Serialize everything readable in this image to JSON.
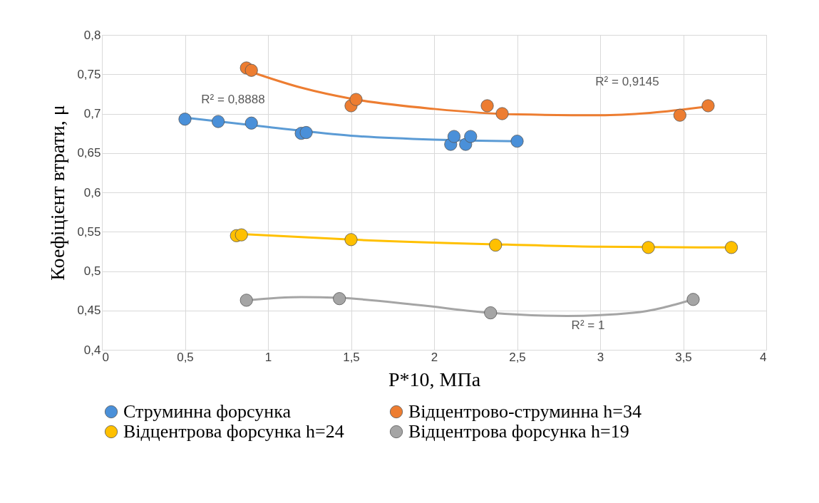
{
  "chart_data": {
    "type": "scatter",
    "xlabel": "P*10, МПа",
    "ylabel": "Коефіцієнт втрати, μ",
    "xlim": [
      0,
      4
    ],
    "xticks": [
      0,
      {
        "value": 0.5,
        "label": "0,5"
      },
      1,
      {
        "value": 1.5,
        "label": "1,5"
      },
      2,
      {
        "value": 2.5,
        "label": "2,5"
      },
      3,
      {
        "value": 3.5,
        "label": "3,5"
      },
      4
    ],
    "ylim": [
      0.4,
      0.8
    ],
    "yticks": [
      {
        "value": 0.4,
        "label": "0,4"
      },
      {
        "value": 0.45,
        "label": "0,45"
      },
      {
        "value": 0.5,
        "label": "0,5"
      },
      {
        "value": 0.55,
        "label": "0,55"
      },
      {
        "value": 0.6,
        "label": "0,6"
      },
      {
        "value": 0.65,
        "label": "0,65"
      },
      {
        "value": 0.7,
        "label": "0,7"
      },
      {
        "value": 0.75,
        "label": "0,75"
      },
      {
        "value": 0.8,
        "label": "0,8"
      }
    ],
    "grid": true,
    "legend": "bottom",
    "marker": "circle",
    "series": [
      {
        "name": "Струминна форсунка",
        "color": "#4a90d9",
        "x": [
          0.5,
          0.7,
          0.9,
          1.2,
          1.23,
          2.1,
          2.12,
          2.19,
          2.22,
          2.5
        ],
        "values": [
          0.693,
          0.69,
          0.688,
          0.675,
          0.676,
          0.661,
          0.671,
          0.661,
          0.671,
          0.665
        ]
      },
      {
        "name": "Відцентрово-струминна h=34",
        "color": "#ed7d31",
        "x": [
          0.87,
          0.9,
          1.5,
          1.53,
          2.32,
          2.41,
          3.48,
          3.65
        ],
        "values": [
          0.758,
          0.755,
          0.71,
          0.718,
          0.71,
          0.7,
          0.698,
          0.71
        ]
      },
      {
        "name": "Відцентрова форсунка h=24",
        "color": "#ffc000",
        "x": [
          0.81,
          0.84,
          1.5,
          2.37,
          3.29,
          3.79
        ],
        "values": [
          0.545,
          0.546,
          0.54,
          0.533,
          0.53,
          0.53
        ]
      },
      {
        "name": "Відцентрова форсунка h=19",
        "color": "#a5a5a5",
        "x": [
          0.87,
          1.43,
          2.34,
          3.56
        ],
        "values": [
          0.463,
          0.465,
          0.447,
          0.464
        ]
      },
      {
        "type": "line",
        "color": "#5b9bd5",
        "marker": "none",
        "x": [
          0.5,
          1.0,
          1.5,
          2.0,
          2.5
        ],
        "values": [
          0.695,
          0.683,
          0.672,
          0.667,
          0.665
        ]
      },
      {
        "type": "line",
        "color": "#ed7d31",
        "marker": "none",
        "x": [
          0.87,
          1.2,
          1.5,
          2.0,
          2.5,
          3.0,
          3.3,
          3.65
        ],
        "values": [
          0.755,
          0.733,
          0.719,
          0.706,
          0.699,
          0.698,
          0.701,
          0.709
        ]
      },
      {
        "type": "line",
        "color": "#ffc000",
        "marker": "none",
        "x": [
          0.84,
          1.5,
          2.37,
          3.0,
          3.79
        ],
        "values": [
          0.547,
          0.54,
          0.534,
          0.531,
          0.53
        ]
      },
      {
        "type": "line",
        "color": "#a5a5a5",
        "marker": "none",
        "x": [
          0.87,
          1.2,
          1.43,
          1.9,
          2.34,
          2.8,
          3.2,
          3.56
        ],
        "values": [
          0.463,
          0.467,
          0.466,
          0.457,
          0.447,
          0.443,
          0.447,
          0.464
        ]
      }
    ],
    "annotations": [
      "R² = 0,8888",
      "R² = 0,9145",
      "R² = 1"
    ]
  }
}
